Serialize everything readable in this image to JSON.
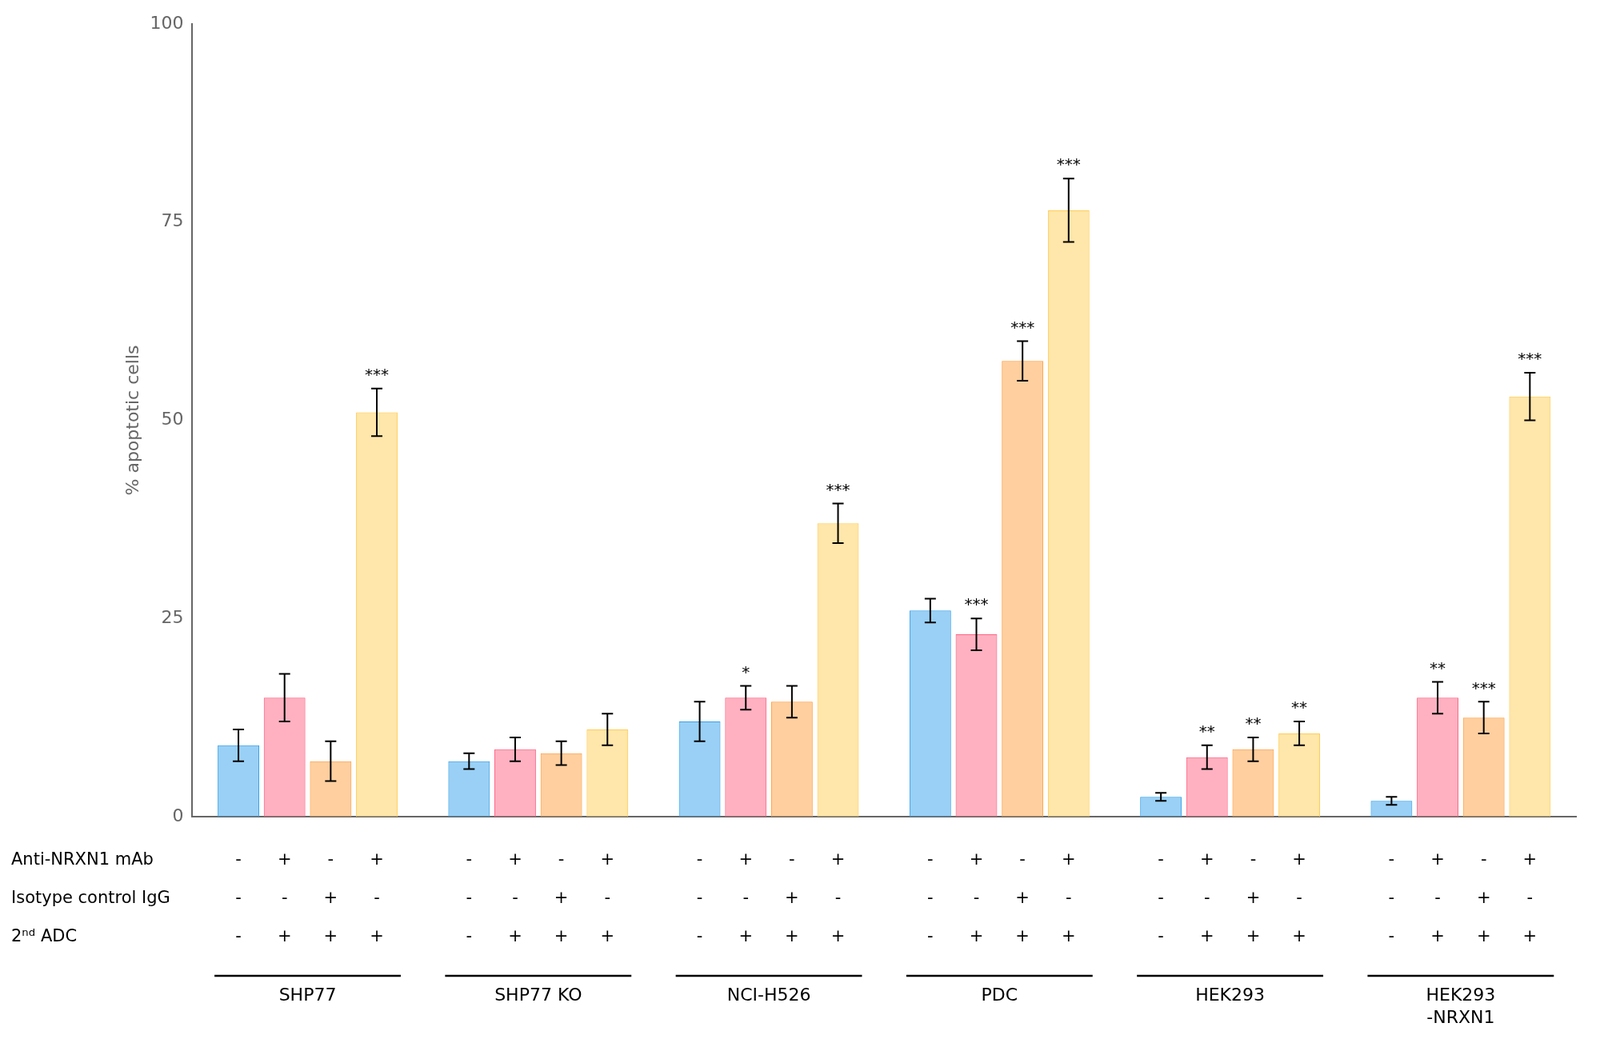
{
  "chart_data": {
    "type": "bar",
    "categories": [
      "SHP77",
      "SHP77 KO",
      "NCI-H526",
      "PDC",
      "HEK293",
      "HEK293\n-NRXN1"
    ],
    "series": [
      {
        "values": [
          9.0,
          7.0,
          12.0,
          26.0,
          2.5,
          2.0
        ],
        "errors": [
          2.0,
          1.0,
          2.5,
          1.5,
          0.5,
          0.5
        ],
        "annotations": [
          null,
          null,
          null,
          null,
          null,
          null
        ]
      },
      {
        "values": [
          15.0,
          8.5,
          15.0,
          23.0,
          7.5,
          15.0
        ],
        "errors": [
          3.0,
          1.5,
          1.5,
          2.0,
          1.5,
          2.0
        ],
        "annotations": [
          null,
          null,
          "*",
          "***",
          "**",
          "**"
        ]
      },
      {
        "values": [
          7.0,
          8.0,
          14.5,
          57.5,
          8.5,
          12.5
        ],
        "errors": [
          2.5,
          1.5,
          2.0,
          2.5,
          1.5,
          2.0
        ],
        "annotations": [
          null,
          null,
          null,
          "***",
          "**",
          "***"
        ]
      },
      {
        "values": [
          51.0,
          11.0,
          37.0,
          76.5,
          10.5,
          53.0
        ],
        "errors": [
          3.0,
          2.0,
          2.5,
          4.0,
          1.5,
          3.0
        ],
        "annotations": [
          "***",
          null,
          "***",
          "***",
          "**",
          "***"
        ]
      }
    ],
    "ylabel": "% apoptotic cells",
    "ylim": [
      0,
      100
    ],
    "yticks": [
      0,
      25,
      50,
      75,
      100
    ],
    "grid": false,
    "treatment_rows": [
      {
        "label": "Anti-NRXN1 mAb",
        "signs": [
          "-",
          "+",
          "-",
          "+"
        ]
      },
      {
        "label": "Isotype control IgG",
        "signs": [
          "-",
          "-",
          "+",
          "-"
        ]
      },
      {
        "label": "2ⁿᵈ ADC",
        "signs": [
          "-",
          "+",
          "+",
          "+"
        ]
      }
    ]
  }
}
